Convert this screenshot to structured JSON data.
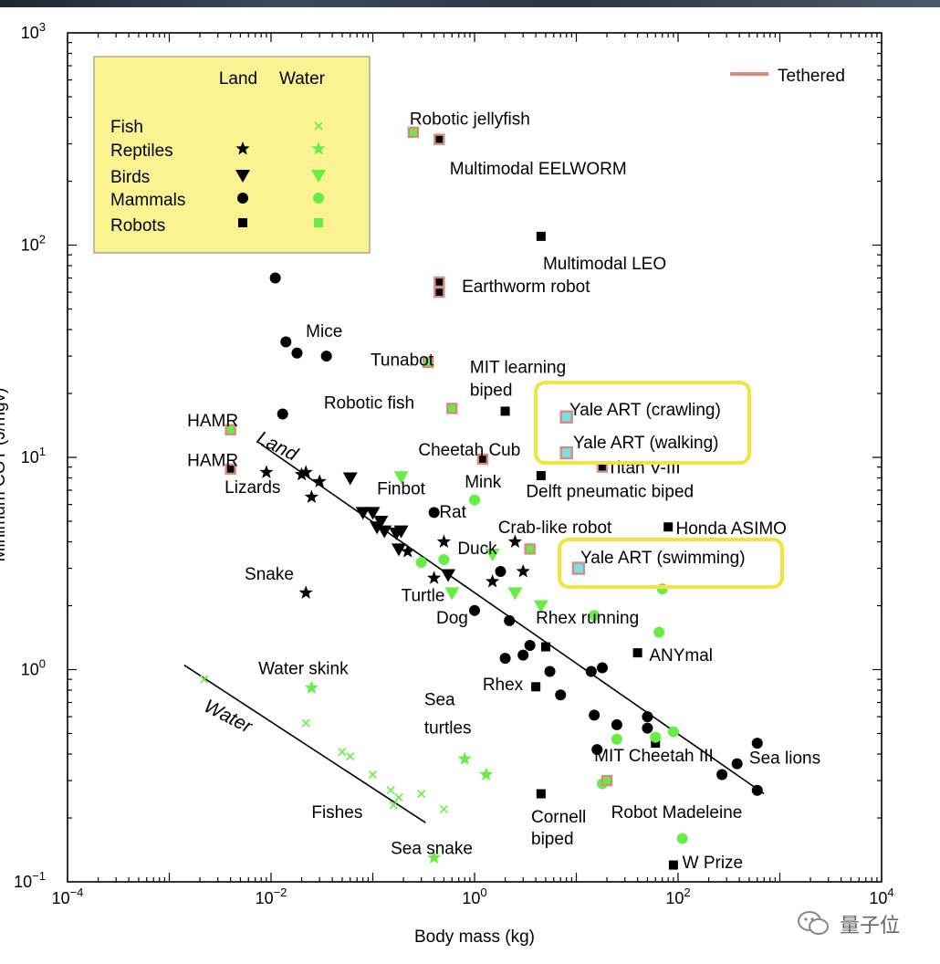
{
  "chart_data": {
    "type": "scatter",
    "xlabel": "Body mass (kg)",
    "ylabel": "Minimum COT (J/mgv)",
    "x_scale": "log",
    "y_scale": "log",
    "xlim": [
      0.0001,
      10000
    ],
    "ylim": [
      0.1,
      1000
    ],
    "x_ticks": [
      {
        "v": 0.0001,
        "b": "10",
        "e": "−4"
      },
      {
        "v": 0.01,
        "b": "10",
        "e": "−2"
      },
      {
        "v": 1,
        "b": "10",
        "e": "0"
      },
      {
        "v": 100,
        "b": "10",
        "e": "2"
      },
      {
        "v": 10000,
        "b": "10",
        "e": "4"
      }
    ],
    "y_ticks": [
      {
        "v": 0.1,
        "b": "10",
        "e": "−1"
      },
      {
        "v": 1,
        "b": "10",
        "e": "0"
      },
      {
        "v": 10,
        "b": "10",
        "e": "1"
      },
      {
        "v": 100,
        "b": "10",
        "e": "2"
      },
      {
        "v": 1000,
        "b": "10",
        "e": "3"
      }
    ],
    "colors": {
      "land": "#000000",
      "water": "#66ee44",
      "tethered": "#d98a80",
      "highlight_fill": "#7ae0e8",
      "legend_bg": "#fbf392",
      "yale_box": "#f5e23a"
    },
    "legend": {
      "col_land": "Land",
      "col_water": "Water",
      "rows": [
        {
          "label": "Fish",
          "land": null,
          "water": "cross"
        },
        {
          "label": "Reptiles",
          "land": "star",
          "water": "star"
        },
        {
          "label": "Birds",
          "land": "triangle",
          "water": "triangle"
        },
        {
          "label": "Mammals",
          "land": "circle",
          "water": "circle"
        },
        {
          "label": "Robots",
          "land": "square",
          "water": "square"
        }
      ],
      "tethered_label": "Tethered"
    },
    "trend_lines": [
      {
        "name": "Land",
        "x": [
          0.008,
          700
        ],
        "y": [
          11.5,
          0.26
        ]
      },
      {
        "name": "Water",
        "x": [
          0.0014,
          0.33
        ],
        "y": [
          1.05,
          0.19
        ]
      }
    ],
    "series": [
      {
        "name": "Land mammals",
        "marker": "circle",
        "color": "land",
        "points": [
          [
            0.011,
            70
          ],
          [
            0.013,
            16
          ],
          [
            0.014,
            35
          ],
          [
            0.018,
            31
          ],
          [
            0.035,
            30
          ],
          [
            0.4,
            5.5
          ],
          [
            1.0,
            1.9
          ],
          [
            1.8,
            2.9
          ],
          [
            2.2,
            1.7
          ],
          [
            2.0,
            1.13
          ],
          [
            3.0,
            1.17
          ],
          [
            3.5,
            1.3
          ],
          [
            5.5,
            0.98
          ],
          [
            7,
            0.76
          ],
          [
            14,
            0.98
          ],
          [
            18,
            1.02
          ],
          [
            15,
            0.61
          ],
          [
            16,
            0.42
          ],
          [
            25,
            0.55
          ],
          [
            50,
            0.6
          ],
          [
            50,
            0.53
          ],
          [
            270,
            0.32
          ],
          [
            380,
            0.36
          ],
          [
            600,
            0.45
          ],
          [
            600,
            0.27
          ]
        ]
      },
      {
        "name": "Land reptiles",
        "marker": "star",
        "color": "land",
        "points": [
          [
            0.009,
            8.5
          ],
          [
            0.02,
            8.3
          ],
          [
            0.022,
            8.5
          ],
          [
            0.03,
            7.7
          ],
          [
            0.025,
            6.5
          ],
          [
            0.022,
            2.3
          ],
          [
            0.22,
            3.6
          ],
          [
            0.4,
            2.7
          ],
          [
            0.5,
            4.0
          ],
          [
            1.5,
            2.6
          ],
          [
            2.5,
            4.0
          ],
          [
            3,
            2.9
          ]
        ]
      },
      {
        "name": "Land birds",
        "marker": "triangle",
        "color": "land",
        "points": [
          [
            0.06,
            8.0
          ],
          [
            0.08,
            5.5
          ],
          [
            0.1,
            5.5
          ],
          [
            0.12,
            5.0
          ],
          [
            0.11,
            4.7
          ],
          [
            0.13,
            4.5
          ],
          [
            0.17,
            4.4
          ],
          [
            0.19,
            4.5
          ],
          [
            0.18,
            3.7
          ],
          [
            0.55,
            2.8
          ]
        ]
      },
      {
        "name": "Land robots",
        "marker": "square",
        "color": "land",
        "points": [
          [
            4.5,
            110
          ],
          [
            2.0,
            16.5
          ],
          [
            4.5,
            8.2
          ],
          [
            5.0,
            1.28
          ],
          [
            4.0,
            0.83
          ],
          [
            40,
            1.2
          ],
          [
            60,
            0.45
          ],
          [
            80,
            4.7
          ],
          [
            4.5,
            0.26
          ],
          [
            90,
            0.12
          ]
        ]
      },
      {
        "name": "Water fishes",
        "marker": "cross",
        "color": "water",
        "points": [
          [
            0.0022,
            0.9
          ],
          [
            0.022,
            0.56
          ],
          [
            0.05,
            0.41
          ],
          [
            0.06,
            0.39
          ],
          [
            0.1,
            0.32
          ],
          [
            0.15,
            0.27
          ],
          [
            0.16,
            0.23
          ],
          [
            0.18,
            0.25
          ],
          [
            0.3,
            0.26
          ],
          [
            0.5,
            0.22
          ]
        ]
      },
      {
        "name": "Water reptiles",
        "marker": "star",
        "color": "water",
        "points": [
          [
            0.025,
            0.82
          ],
          [
            0.8,
            0.38
          ],
          [
            1.3,
            0.32
          ],
          [
            0.4,
            0.13
          ]
        ]
      },
      {
        "name": "Water birds",
        "marker": "triangle",
        "color": "water",
        "points": [
          [
            0.19,
            8.1
          ],
          [
            0.6,
            2.3
          ],
          [
            1.5,
            3.5
          ],
          [
            2.5,
            2.3
          ],
          [
            4.5,
            2.0
          ]
        ]
      },
      {
        "name": "Water mammals",
        "marker": "circle",
        "color": "water",
        "points": [
          [
            0.3,
            3.2
          ],
          [
            0.5,
            3.3
          ],
          [
            1.0,
            6.3
          ],
          [
            15,
            1.8
          ],
          [
            18,
            0.29
          ],
          [
            25,
            0.47
          ],
          [
            60,
            0.48
          ],
          [
            65,
            1.5
          ],
          [
            70,
            2.4
          ],
          [
            90,
            0.51
          ],
          [
            110,
            0.16
          ]
        ]
      },
      {
        "name": "Tethered robots",
        "marker": "square",
        "color": "water_tethered",
        "points": [
          [
            0.25,
            340
          ],
          [
            0.35,
            28
          ],
          [
            0.6,
            17
          ],
          [
            0.004,
            13.5
          ],
          [
            3.5,
            3.7
          ],
          [
            20,
            0.3
          ]
        ]
      },
      {
        "name": "Tethered land robots",
        "marker": "square",
        "color": "land_tethered",
        "points": [
          [
            0.45,
            315
          ],
          [
            0.45,
            67
          ],
          [
            0.45,
            60
          ],
          [
            0.004,
            8.8
          ],
          [
            1.2,
            9.8
          ],
          [
            18,
            9.0
          ]
        ]
      },
      {
        "name": "Yale ART",
        "marker": "square",
        "color": "highlight",
        "points": [
          [
            8,
            15.5
          ],
          [
            8,
            10.5
          ],
          [
            10.5,
            3.0
          ]
        ]
      }
    ],
    "labels": [
      {
        "text": "Robotic jellyfish",
        "x": 0.23,
        "y": 370
      },
      {
        "text": "Multimodal EELWORM",
        "x": 0.57,
        "y": 215
      },
      {
        "text": "Multimodal LEO",
        "x": 4.7,
        "y": 77
      },
      {
        "text": "Earthworm robot",
        "x": 0.75,
        "y": 60
      },
      {
        "text": "Mice",
        "x": 0.022,
        "y": 37
      },
      {
        "text": "Tunabot",
        "x": 0.095,
        "y": 27
      },
      {
        "text": "MIT learning",
        "x": 0.9,
        "y": 25
      },
      {
        "text": "biped",
        "x": 0.9,
        "y": 19.5
      },
      {
        "text": "HAMR",
        "x": 0.0015,
        "y": 14
      },
      {
        "text": "Robotic fish",
        "x": 0.033,
        "y": 17
      },
      {
        "text": "Cheetah Cub",
        "x": 0.28,
        "y": 10.2
      },
      {
        "text": "HAMR",
        "x": 0.0015,
        "y": 9.1
      },
      {
        "text": "Titan V-III",
        "x": 20,
        "y": 8.4
      },
      {
        "text": "Delft pneumatic biped",
        "x": 3.2,
        "y": 6.5
      },
      {
        "text": "Mink",
        "x": 0.8,
        "y": 7.2
      },
      {
        "text": "Lizards",
        "x": 0.0035,
        "y": 6.8
      },
      {
        "text": "Finbot",
        "x": 0.11,
        "y": 6.7
      },
      {
        "text": "Rat",
        "x": 0.45,
        "y": 5.2
      },
      {
        "text": "Crab-like robot",
        "x": 1.7,
        "y": 4.4
      },
      {
        "text": "Honda ASIMO",
        "x": 95,
        "y": 4.35
      },
      {
        "text": "Duck",
        "x": 0.68,
        "y": 3.5
      },
      {
        "text": "Snake",
        "x": 0.0055,
        "y": 2.65
      },
      {
        "text": "Turtle",
        "x": 0.19,
        "y": 2.1
      },
      {
        "text": "Dog",
        "x": 0.42,
        "y": 1.65
      },
      {
        "text": "Rhex running",
        "x": 4.0,
        "y": 1.65
      },
      {
        "text": "ANYmal",
        "x": 52,
        "y": 1.1
      },
      {
        "text": "Rhex",
        "x": 1.2,
        "y": 0.8
      },
      {
        "text": "Water skink",
        "x": 0.0075,
        "y": 0.95
      },
      {
        "text": "Sea",
        "x": 0.32,
        "y": 0.68
      },
      {
        "text": "turtles",
        "x": 0.32,
        "y": 0.5
      },
      {
        "text": "MIT Cheetah III",
        "x": 15,
        "y": 0.37
      },
      {
        "text": "Sea lions",
        "x": 500,
        "y": 0.36
      },
      {
        "text": "Fishes",
        "x": 0.025,
        "y": 0.2
      },
      {
        "text": "Robot Madeleine",
        "x": 22,
        "y": 0.2
      },
      {
        "text": "Cornell",
        "x": 3.6,
        "y": 0.19
      },
      {
        "text": "biped",
        "x": 3.6,
        "y": 0.15
      },
      {
        "text": "Sea snake",
        "x": 0.15,
        "y": 0.135
      },
      {
        "text": "W Prize",
        "x": 110,
        "y": 0.116
      }
    ],
    "highlight_boxes": [
      {
        "lines": [
          "Yale ART (crawling)",
          "Yale ART (walking)"
        ]
      },
      {
        "lines": [
          "Yale ART (swimming)"
        ]
      }
    ]
  },
  "watermark": {
    "text": "量子位",
    "icon": "wechat-icon"
  }
}
